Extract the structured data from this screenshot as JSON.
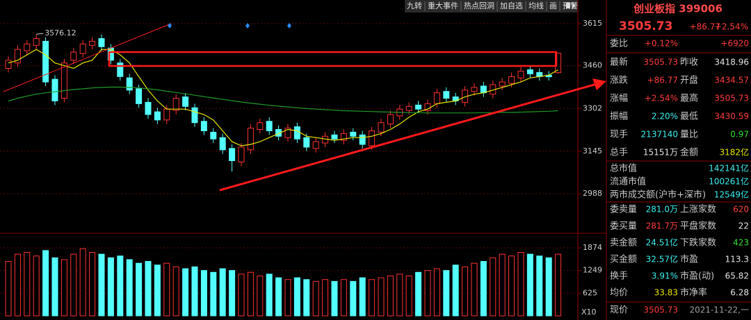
{
  "toolbar": [
    "九转",
    "重大事件",
    "热点回洞",
    "加自选",
    "均线",
    "画",
    "预警"
  ],
  "chart_data": [
    {
      "type": "candlestick",
      "open": [
        3450,
        3470,
        3515,
        3535,
        3550,
        3410,
        3340,
        3480,
        3505,
        3535,
        3560,
        3525,
        3470,
        3415,
        3375,
        3325,
        3290,
        3260,
        3295,
        3345,
        3305,
        3255,
        3215,
        3195,
        3155,
        3105,
        3150,
        3225,
        3255,
        3225,
        3195,
        3235,
        3195,
        3155,
        3175,
        3205,
        3185,
        3215,
        3205,
        3165,
        3215,
        3245,
        3275,
        3295,
        3315,
        3295,
        3320,
        3365,
        3345,
        3325,
        3365,
        3385,
        3355,
        3385,
        3395,
        3415,
        3445,
        3435,
        3425,
        3434.57
      ],
      "high": [
        3495,
        3535,
        3555,
        3576.12,
        3565,
        3425,
        3485,
        3525,
        3555,
        3565,
        3575,
        3540,
        3485,
        3430,
        3390,
        3340,
        3305,
        3315,
        3355,
        3360,
        3320,
        3270,
        3230,
        3210,
        3170,
        3175,
        3245,
        3265,
        3270,
        3240,
        3245,
        3250,
        3210,
        3195,
        3215,
        3220,
        3225,
        3230,
        3220,
        3235,
        3265,
        3295,
        3315,
        3325,
        3330,
        3335,
        3375,
        3380,
        3360,
        3385,
        3395,
        3400,
        3405,
        3415,
        3435,
        3455,
        3460,
        3450,
        3440,
        3505.73
      ],
      "low": [
        3435,
        3455,
        3500,
        3520,
        3385,
        3315,
        3325,
        3465,
        3490,
        3520,
        3515,
        3465,
        3405,
        3355,
        3305,
        3265,
        3245,
        3245,
        3280,
        3295,
        3235,
        3205,
        3175,
        3135,
        3070,
        3090,
        3135,
        3210,
        3205,
        3185,
        3180,
        3175,
        3145,
        3140,
        3160,
        3175,
        3170,
        3185,
        3155,
        3150,
        3200,
        3230,
        3260,
        3280,
        3285,
        3280,
        3305,
        3325,
        3315,
        3310,
        3350,
        3345,
        3340,
        3370,
        3380,
        3400,
        3415,
        3405,
        3405,
        3430.59
      ],
      "close": [
        3480,
        3520,
        3540,
        3560,
        3400,
        3330,
        3470,
        3510,
        3540,
        3550,
        3530,
        3480,
        3420,
        3370,
        3320,
        3280,
        3260,
        3300,
        3340,
        3310,
        3250,
        3220,
        3190,
        3150,
        3110,
        3160,
        3230,
        3250,
        3220,
        3200,
        3230,
        3190,
        3160,
        3180,
        3200,
        3190,
        3210,
        3200,
        3170,
        3220,
        3250,
        3280,
        3300,
        3310,
        3300,
        3320,
        3360,
        3340,
        3330,
        3370,
        3380,
        3360,
        3390,
        3400,
        3420,
        3440,
        3430,
        3420,
        3418.96,
        3505.73
      ],
      "series": [
        {
          "color": "#e8e800",
          "values": [
            3470,
            3480,
            3500,
            3520,
            3500,
            3470,
            3460,
            3450,
            3470,
            3480,
            3520,
            3520,
            3500,
            3470,
            3420,
            3370,
            3330,
            3300,
            3300,
            3300,
            3290,
            3280,
            3260,
            3220,
            3180,
            3165,
            3170,
            3180,
            3195,
            3210,
            3225,
            3220,
            3200,
            3195,
            3190,
            3185,
            3190,
            3195,
            3195,
            3200,
            3210,
            3225,
            3245,
            3270,
            3290,
            3300,
            3320,
            3325,
            3330,
            3345,
            3355,
            3360,
            3370,
            3380,
            3390,
            3400,
            3415,
            3420,
            3425,
            3445
          ]
        },
        {
          "color": "#1f9a2a",
          "values": [
            3330,
            3340,
            3348,
            3355,
            3360,
            3364,
            3368,
            3372,
            3375,
            3378,
            3380,
            3381,
            3381,
            3380,
            3378,
            3375,
            3371,
            3366,
            3361,
            3356,
            3351,
            3346,
            3341,
            3336,
            3331,
            3326,
            3322,
            3318,
            3314,
            3311,
            3308,
            3305,
            3302,
            3300,
            3298,
            3296,
            3294,
            3293,
            3292,
            3291,
            3290,
            3289,
            3288,
            3287,
            3287,
            3286,
            3286,
            3286,
            3286,
            3286,
            3286,
            3287,
            3287,
            3288,
            3288,
            3289,
            3290,
            3291,
            3292,
            3294
          ]
        }
      ],
      "high_label": "3576.12",
      "ylim": [
        2858,
        3702
      ],
      "yticks": [
        3615,
        3460,
        3302,
        3145,
        2988
      ],
      "grid": true,
      "up_color": "#ff3232",
      "down_color": "#54ffff"
    },
    {
      "type": "bar",
      "y_label": "X10",
      "values": [
        1500,
        1700,
        1750,
        1650,
        1800,
        1600,
        1550,
        1700,
        1850,
        1750,
        1700,
        1600,
        1650,
        1550,
        1450,
        1500,
        1400,
        1450,
        1350,
        1300,
        1350,
        1250,
        1200,
        1300,
        1250,
        1150,
        1200,
        1100,
        1150,
        1050,
        1000,
        1050,
        1000,
        950,
        1000,
        950,
        1000,
        950,
        1050,
        1000,
        1050,
        1100,
        1150,
        1100,
        1200,
        1250,
        1300,
        1250,
        1400,
        1350,
        1450,
        1500,
        1600,
        1700,
        1650,
        1750,
        1700,
        1650,
        1600,
        1700
      ],
      "ylim": [
        0,
        2200
      ],
      "yticks": [
        1874,
        1249,
        625
      ]
    }
  ],
  "panel": {
    "title": "创业板指 399006",
    "price": "3505.73",
    "change": "+86.77",
    "change_pct": "+2.54%",
    "rows": [
      [
        "委比",
        "+0.12%",
        "+6920"
      ],
      [
        "最新",
        "3505.73",
        "昨收",
        "3418.96"
      ],
      [
        "涨跌",
        "+86.77",
        "开盘",
        "3434.57"
      ],
      [
        "涨幅",
        "+2.54%",
        "最高",
        "3505.73"
      ],
      [
        "振幅",
        "2.20%",
        "最低",
        "3430.59"
      ],
      [
        "现手",
        "2137140",
        "量比",
        "0.97"
      ],
      [
        "总手",
        "15151万",
        "金额",
        "3182亿"
      ],
      [
        "总市值",
        "142141亿"
      ],
      [
        "流通市值",
        "100261亿"
      ],
      [
        "两市成交额(沪市+深市)",
        "12549亿"
      ],
      [
        "委卖量",
        "281.0万",
        "上涨家数",
        "620"
      ],
      [
        "委买量",
        "281.7万",
        "平盘家数",
        "22"
      ],
      [
        "卖金额",
        "24.51亿",
        "下跌家数",
        "423"
      ],
      [
        "买金额",
        "32.57亿",
        "市盈",
        "113.3"
      ],
      [
        "换手",
        "3.91%",
        "市盈(动)",
        "65.82"
      ],
      [
        "均价",
        "33.83",
        "市净率",
        "6.28"
      ],
      [
        "现价",
        "3505.73",
        "2021-11-22,一"
      ]
    ]
  }
}
